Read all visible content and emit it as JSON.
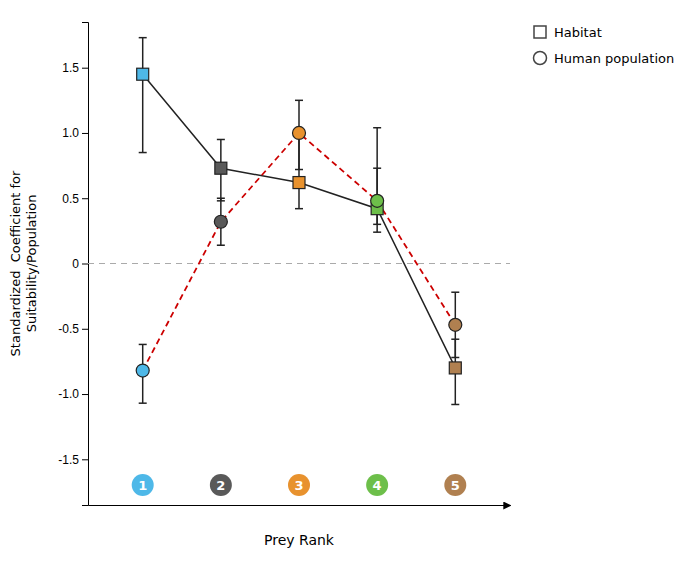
{
  "chart_data": {
    "type": "line",
    "xlabel": "Prey Rank",
    "ylabel": "Standardized  Coefficient for\nSuitability/Population",
    "x": [
      1,
      2,
      3,
      4,
      5
    ],
    "xlim": [
      0.3,
      5.7
    ],
    "ylim": [
      -1.85,
      1.85
    ],
    "yticks": [
      -1.5,
      {
        "value": -1.0,
        "label": "-1.0"
      },
      -0.5,
      0,
      0.5,
      {
        "value": 1.0,
        "label": "1.0"
      },
      1.5
    ],
    "tick_labels": "y",
    "legend": "upper right",
    "reference_lines": [
      {
        "value": 0,
        "color": "#aaaaaa",
        "line_style": "dashed"
      }
    ],
    "series": [
      {
        "name": "Habitat",
        "type": "line",
        "marker": "square",
        "line_style": "solid",
        "color": "#222222",
        "colors": [
          "#4eb8e8",
          "#595959",
          "#e8922e",
          "#6dbf4a",
          "#b08050"
        ],
        "values": [
          1.45,
          0.73,
          0.62,
          0.42,
          -0.8
        ],
        "error_up": [
          0.28,
          0.22,
          0.38,
          0.62,
          0.22
        ],
        "error_down": [
          0.6,
          0.25,
          0.2,
          0.18,
          0.28
        ]
      },
      {
        "name": "Human population",
        "type": "line",
        "marker": "circle",
        "line_style": "dashed",
        "color": "#cc0000",
        "colors": [
          "#4eb8e8",
          "#595959",
          "#e8922e",
          "#6dbf4a",
          "#b08050"
        ],
        "values": [
          -0.82,
          0.32,
          1.0,
          0.48,
          -0.47
        ],
        "error_up": [
          0.2,
          0.18,
          0.25,
          0.25,
          0.25
        ],
        "error_down": [
          0.25,
          0.18,
          0.28,
          0.18,
          0.25
        ]
      }
    ]
  }
}
